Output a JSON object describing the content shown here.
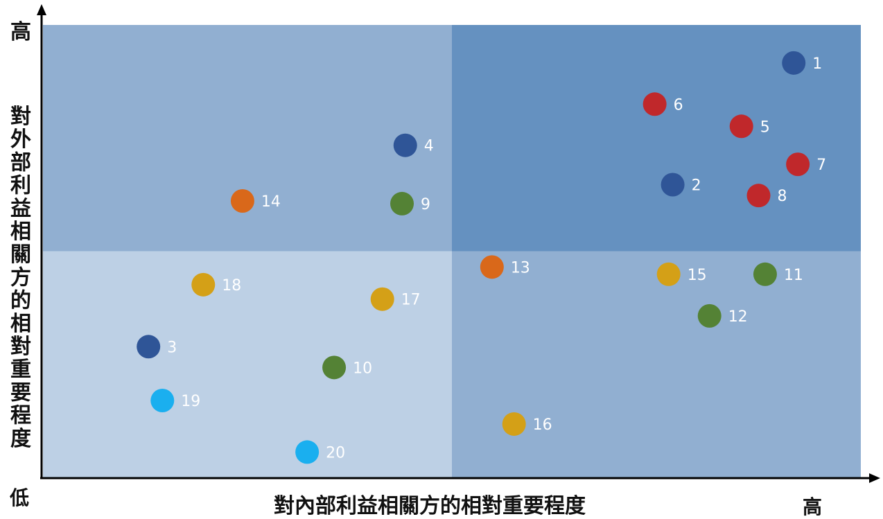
{
  "chart_data": {
    "type": "scatter",
    "title": "",
    "xlabel": "對內部利益相關方的相對重要程度",
    "ylabel": "對外部利益相關方的相對重要程度",
    "x_high_label": "高",
    "y_high_label": "高",
    "low_label": "低",
    "xlim": [
      0,
      100
    ],
    "ylim": [
      0,
      100
    ],
    "quadrant_split": {
      "x": 50,
      "y": 50
    },
    "quadrant_colors": {
      "top_left": "#91AFD1",
      "top_right": "#6591C0",
      "bottom_left": "#BDD0E5",
      "bottom_right": "#91AFD1"
    },
    "category_colors": {
      "navy": "#2F5597",
      "red": "#C0282B",
      "orange": "#D9681A",
      "green": "#548235",
      "gold": "#D4A017",
      "cyan": "#1AAFEF"
    },
    "points": [
      {
        "label": "1",
        "x": 91.8,
        "y": 91.6,
        "color": "navy"
      },
      {
        "label": "2",
        "x": 77.0,
        "y": 64.7,
        "color": "navy"
      },
      {
        "label": "3",
        "x": 12.9,
        "y": 28.9,
        "color": "navy"
      },
      {
        "label": "4",
        "x": 44.3,
        "y": 73.4,
        "color": "navy"
      },
      {
        "label": "5",
        "x": 85.4,
        "y": 77.6,
        "color": "red"
      },
      {
        "label": "6",
        "x": 74.8,
        "y": 82.5,
        "color": "red"
      },
      {
        "label": "7",
        "x": 92.3,
        "y": 69.2,
        "color": "red"
      },
      {
        "label": "8",
        "x": 87.5,
        "y": 62.3,
        "color": "red"
      },
      {
        "label": "9",
        "x": 43.9,
        "y": 60.5,
        "color": "green"
      },
      {
        "label": "10",
        "x": 35.6,
        "y": 24.3,
        "color": "green"
      },
      {
        "label": "11",
        "x": 88.3,
        "y": 44.9,
        "color": "green"
      },
      {
        "label": "12",
        "x": 81.5,
        "y": 35.7,
        "color": "green"
      },
      {
        "label": "13",
        "x": 54.9,
        "y": 46.5,
        "color": "orange"
      },
      {
        "label": "14",
        "x": 24.4,
        "y": 61.1,
        "color": "orange"
      },
      {
        "label": "15",
        "x": 76.5,
        "y": 44.9,
        "color": "gold"
      },
      {
        "label": "16",
        "x": 57.6,
        "y": 11.8,
        "color": "gold"
      },
      {
        "label": "17",
        "x": 41.5,
        "y": 39.4,
        "color": "gold"
      },
      {
        "label": "18",
        "x": 19.6,
        "y": 42.6,
        "color": "gold"
      },
      {
        "label": "19",
        "x": 14.6,
        "y": 17.0,
        "color": "cyan"
      },
      {
        "label": "20",
        "x": 32.3,
        "y": 5.6,
        "color": "cyan"
      }
    ]
  }
}
